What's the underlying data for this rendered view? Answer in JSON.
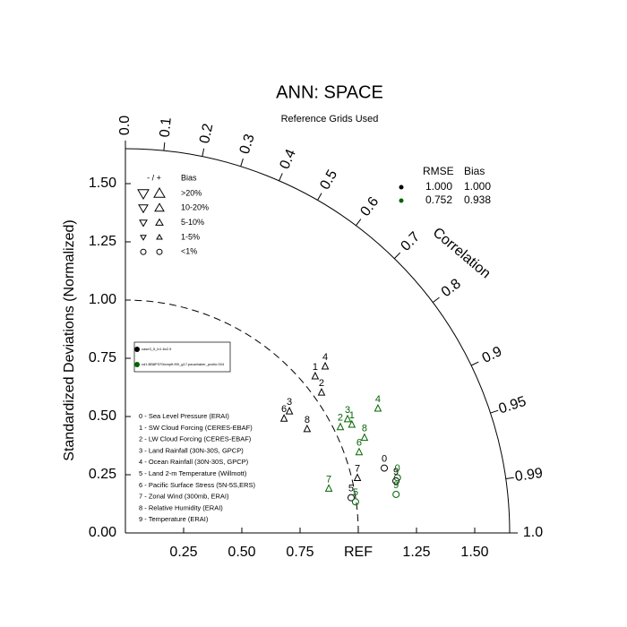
{
  "chart_data": {
    "type": "taylor",
    "title": "ANN: SPACE",
    "subtitle": "Reference Grids Used",
    "ylabel": "Standardized Deviations (Normalized)",
    "angular_label": "Correlation",
    "xlim": [
      0,
      1.65
    ],
    "ylim": [
      0,
      1.65
    ],
    "yticks": [
      {
        "value": 0,
        "label": "0.00"
      },
      {
        "value": 0.25,
        "label": "0.25"
      },
      {
        "value": 0.5,
        "label": "0.50"
      },
      {
        "value": 0.75,
        "label": "0.75"
      },
      {
        "value": 1,
        "label": "1.00"
      },
      {
        "value": 1.25,
        "label": "1.25"
      },
      {
        "value": 1.5,
        "label": "1.50"
      }
    ],
    "xticks": [
      {
        "value": 0.25,
        "label": "0.25"
      },
      {
        "value": 0.5,
        "label": "0.50"
      },
      {
        "value": 0.75,
        "label": "0.75"
      },
      {
        "value": 1,
        "label": "REF"
      },
      {
        "value": 1.25,
        "label": "1.25"
      },
      {
        "value": 1.5,
        "label": "1.50"
      }
    ],
    "corr_ticks": [
      {
        "value": 0,
        "label": "0.0"
      },
      0.1,
      0.2,
      0.3,
      0.4,
      0.5,
      0.6,
      0.7,
      0.8,
      0.9,
      0.95,
      0.99,
      {
        "value": 1,
        "label": "1.0"
      }
    ],
    "ref_line": 1,
    "point_labels": [
      "0",
      "1",
      "2",
      "3",
      "4",
      "5",
      "6",
      "7",
      "8",
      "9"
    ],
    "stat_header": [
      "RMSE",
      "Bias"
    ],
    "series": [
      {
        "name": "case3_5_lv1.6x2.5",
        "color": "#000000",
        "rmse": "1.000",
        "bias": "1.000",
        "ratio": [
          1.146,
          1.057,
          1.036,
          0.877,
          1.117,
          0.981,
          0.84,
          1.024,
          0.899,
          1.183
        ],
        "correlation": [
          0.97,
          0.771,
          0.813,
          0.803,
          0.768,
          0.988,
          0.811,
          0.973,
          0.868,
          0.982
        ],
        "markers": [
          "circle",
          "triangle",
          "triangle",
          "triangle",
          "triangle",
          "circle",
          "triangle",
          "triangle",
          "triangle",
          "circle"
        ]
      },
      {
        "name": "cd1.BB8P370tcmpft.f09_g17.pauwhaker_pcollo.004",
        "color": "#006400",
        "rmse": "0.752",
        "bias": "0.938",
        "ratio": [
          1.192,
          1.078,
          1.029,
          1.072,
          1.209,
          0.997,
          1.062,
          0.894,
          1.105,
          1.174
        ],
        "correlation": [
          0.98,
          0.902,
          0.897,
          0.89,
          0.897,
          0.991,
          0.945,
          0.977,
          0.929,
          0.99
        ],
        "markers": [
          "circle",
          "triangle",
          "triangle",
          "triangle",
          "triangle",
          "circle",
          "triangle",
          "triangle",
          "triangle",
          "circle"
        ]
      }
    ],
    "bias_legend": {
      "header": [
        "- / +",
        "Bias"
      ],
      "classes": [
        ">20%",
        "10-20%",
        "5-10%",
        "1-5%",
        "<1%"
      ]
    },
    "variables": [
      "0 - Sea Level Pressure (ERAI)",
      "1 - SW Cloud Forcing (CERES-EBAF)",
      "2 - LW Cloud Forcing (CERES-EBAF)",
      "3 - Land Rainfall (30N-30S, GPCP)",
      "4 - Ocean Rainfall (30N-30S, GPCP)",
      "5 - Land 2-m Temperature (Willmott)",
      "6 - Pacific Surface Stress (5N-5S,ERS)",
      "7 - Zonal Wind (300mb, ERAI)",
      "8 - Relative Humidity (ERAI)",
      "9 - Temperature (ERAI)"
    ]
  }
}
